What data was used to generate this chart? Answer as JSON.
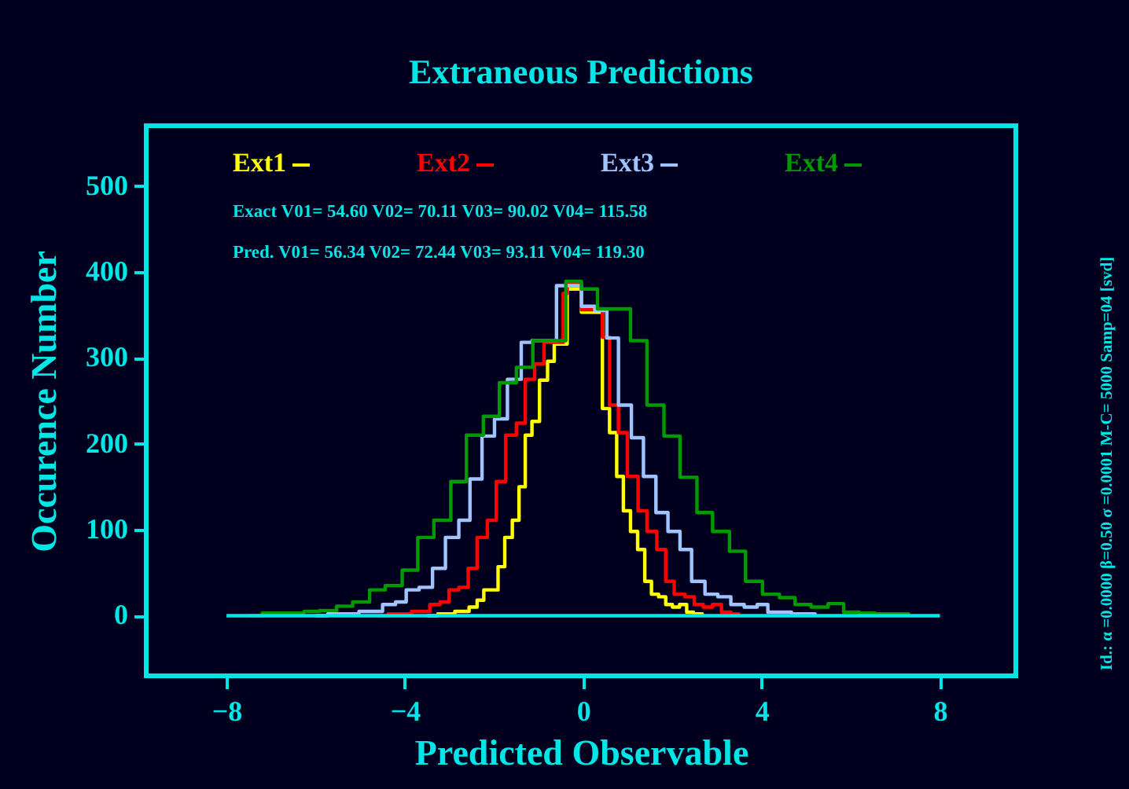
{
  "chart_data": {
    "type": "step",
    "title": "Extraneous Predictions",
    "xlabel": "Predicted Observable",
    "ylabel": "Occurence Number",
    "xlim": [
      -9.8,
      9.7
    ],
    "ylim": [
      -70,
      570
    ],
    "xticks": [
      -8,
      -4,
      0,
      4,
      8
    ],
    "yticks": [
      0,
      100,
      200,
      300,
      400,
      500
    ],
    "grid": false,
    "legend": "top left",
    "marker": "none",
    "line_style": "solid",
    "annotations": [
      "Exact V01= 54.60 V02= 70.11 V03= 90.02 V04= 115.58",
      "Pred. V01= 56.34 V02= 72.44 V03= 93.11 V04= 119.30",
      "Id.: α =0.0000 β=0.50 σ =0.0001 M-C= 5000 Samp=04 [svd]"
    ],
    "series": [
      {
        "name": "Ext1",
        "color": "#ffff00",
        "x": [
          -3.5,
          -3.26,
          -2.88,
          -2.56,
          -2.38,
          -2.23,
          -1.91,
          -1.76,
          -1.59,
          -1.44,
          -1.3,
          -1.15,
          -0.98,
          -0.8,
          -0.65,
          -0.36,
          -0.04,
          0.43,
          0.59,
          0.75,
          0.9,
          1.06,
          1.22,
          1.38,
          1.53,
          1.69,
          1.85,
          2.0,
          2.16,
          2.32,
          2.47,
          2.67
        ],
        "values": [
          0,
          2,
          5,
          10,
          18,
          30,
          57,
          91,
          111,
          150,
          210,
          226,
          274,
          296,
          316,
          380,
          353,
          241,
          213,
          162,
          122,
          98,
          77,
          40,
          25,
          22,
          13,
          10,
          13,
          4,
          2,
          0
        ]
      },
      {
        "name": "Ext2",
        "color": "#ff0000",
        "x": [
          -4.6,
          -4.38,
          -3.85,
          -3.44,
          -3.21,
          -3.01,
          -2.79,
          -2.58,
          -2.38,
          -2.15,
          -1.95,
          -1.74,
          -1.5,
          -1.3,
          -1.09,
          -0.88,
          -0.45,
          -0.36,
          -0.04,
          0.43,
          0.59,
          0.79,
          0.99,
          1.23,
          1.43,
          1.65,
          1.85,
          2.04,
          2.28,
          2.49,
          2.69,
          2.9,
          3.1,
          3.31,
          3.49
        ],
        "values": [
          0,
          2,
          5,
          13,
          16,
          30,
          33,
          55,
          91,
          111,
          156,
          210,
          224,
          275,
          293,
          318,
          375,
          387,
          356,
          324,
          245,
          213,
          162,
          122,
          98,
          77,
          40,
          25,
          22,
          13,
          10,
          13,
          4,
          2,
          0
        ]
      },
      {
        "name": "Ext3",
        "color": "#a0c4ff",
        "x": [
          -6.0,
          -5.73,
          -5.03,
          -4.5,
          -4.21,
          -3.97,
          -3.68,
          -3.38,
          -3.09,
          -2.79,
          -2.54,
          -2.27,
          -1.99,
          -1.7,
          -1.39,
          -1.15,
          -0.6,
          -0.04,
          0.26,
          0.53,
          0.79,
          1.08,
          1.35,
          1.63,
          1.9,
          2.17,
          2.43,
          2.73,
          3.02,
          3.31,
          3.61,
          3.9,
          4.14,
          4.67,
          5.2
        ],
        "values": [
          0,
          2,
          5,
          13,
          16,
          30,
          33,
          55,
          91,
          111,
          159,
          209,
          229,
          275,
          318,
          320,
          384,
          360,
          355,
          323,
          245,
          207,
          162,
          120,
          98,
          77,
          40,
          25,
          22,
          13,
          10,
          13,
          4,
          2,
          0
        ]
      },
      {
        "name": "Ext4",
        "color": "#009a00",
        "x": [
          -7.5,
          -7.2,
          -6.26,
          -5.91,
          -5.53,
          -5.17,
          -4.79,
          -4.44,
          -4.06,
          -3.71,
          -3.35,
          -2.97,
          -2.62,
          -2.24,
          -1.88,
          -1.5,
          -1.13,
          -0.39,
          -0.04,
          0.32,
          1.06,
          1.43,
          1.81,
          2.17,
          2.55,
          2.9,
          3.28,
          3.64,
          4.02,
          4.4,
          4.75,
          5.11,
          5.49,
          5.84,
          6.19,
          6.55,
          7.3
        ],
        "values": [
          0,
          3,
          5,
          6,
          11,
          16,
          30,
          35,
          53,
          91,
          111,
          156,
          210,
          232,
          271,
          289,
          320,
          389,
          380,
          357,
          320,
          245,
          209,
          161,
          120,
          98,
          75,
          40,
          25,
          21,
          13,
          10,
          14,
          4,
          3,
          2,
          0
        ]
      },
      {
        "type": "line",
        "color": "#00e5e5",
        "x": [
          -8,
          8
        ],
        "values": [
          0,
          0
        ]
      }
    ]
  }
}
